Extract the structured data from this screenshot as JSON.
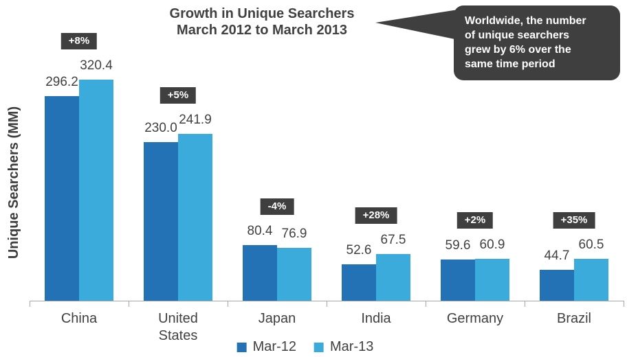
{
  "title": {
    "line1": "Growth in Unique Searchers",
    "line2": "March 2012 to March 2013"
  },
  "callout": {
    "lines": [
      "Worldwide, the number",
      "of unique searchers",
      "grew by 6% over the",
      "same time period"
    ]
  },
  "colors": {
    "mar12_bar": "#2272b5",
    "mar13_bar": "#3aabdb",
    "annotation_bg": "#3f3f3f",
    "text": "#404040",
    "axis": "#a6a6a6"
  },
  "chart_data": {
    "type": "bar",
    "title": "Growth in Unique Searchers March 2012 to March 2013",
    "xlabel": "",
    "ylabel": "Unique Searchers (MM)",
    "categories": [
      "China",
      "United States",
      "Japan",
      "India",
      "Germany",
      "Brazil"
    ],
    "series": [
      {
        "name": "Mar-12",
        "color": "#2272b5",
        "values": [
          296.2,
          230.0,
          80.4,
          52.6,
          59.6,
          44.7
        ]
      },
      {
        "name": "Mar-13",
        "color": "#3aabdb",
        "values": [
          320.4,
          241.9,
          76.9,
          67.5,
          60.9,
          60.5
        ]
      }
    ],
    "growth_labels": [
      "+8%",
      "+5%",
      "-4%",
      "+28%",
      "+2%",
      "+35%"
    ],
    "annotation": "Worldwide, the number of unique searchers grew by 6% over the same time period",
    "ylim": [
      0,
      400
    ],
    "grid": false,
    "legend_position": "bottom"
  }
}
